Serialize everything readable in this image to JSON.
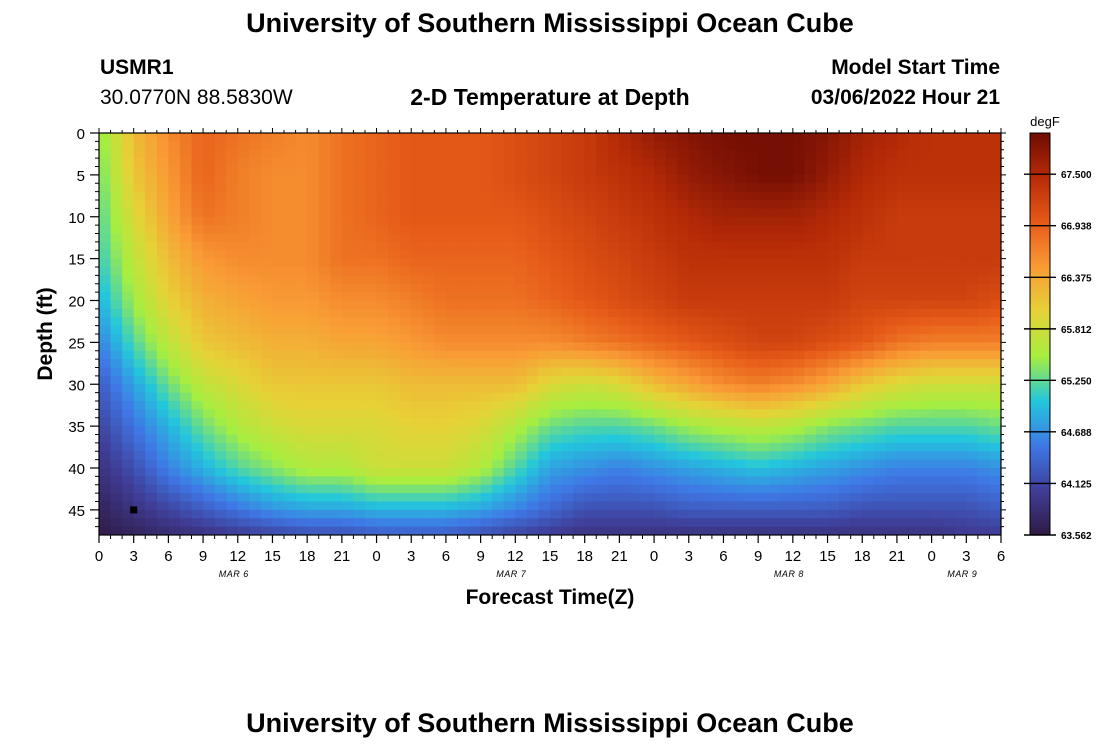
{
  "titles": {
    "top": "University of Southern Mississippi Ocean Cube",
    "bottom": "University of Southern Mississippi Ocean Cube"
  },
  "header": {
    "station": "USMR1",
    "coords": "30.0770N  88.5830W",
    "subtitle": "2-D Temperature at Depth",
    "start_label": "Model Start Time",
    "start_value": "03/06/2022 Hour 21"
  },
  "chart_data": {
    "type": "heatmap",
    "title": "2-D Temperature at Depth",
    "xlabel": "Forecast Time(Z)",
    "ylabel": "Depth (ft)",
    "x_ticks": [
      "0",
      "3",
      "6",
      "9",
      "12",
      "15",
      "18",
      "21",
      "0",
      "3",
      "6",
      "9",
      "12",
      "15",
      "18",
      "21",
      "0",
      "3",
      "6",
      "9",
      "12",
      "15",
      "18",
      "21",
      "0",
      "3",
      "6"
    ],
    "date_labels": [
      {
        "label": "MAR 6",
        "tick_index": 4
      },
      {
        "label": "MAR 7",
        "tick_index": 12
      },
      {
        "label": "MAR 8",
        "tick_index": 20
      },
      {
        "label": "MAR 9",
        "tick_index": 25
      }
    ],
    "y_ticks": [
      0,
      5,
      10,
      15,
      20,
      25,
      30,
      35,
      40,
      45
    ],
    "ylim": [
      0,
      48
    ],
    "x_range_hours": [
      0,
      78
    ],
    "colorbar": {
      "unit": "degF",
      "range": [
        63.562,
        67.95
      ],
      "labels": [
        "67.500",
        "66.938",
        "66.375",
        "65.812",
        "65.250",
        "64.688",
        "64.125",
        "63.562"
      ],
      "colors": [
        "#301a44",
        "#3f3e98",
        "#3f78e6",
        "#23c7dc",
        "#a6ee40",
        "#e6d237",
        "#f99b35",
        "#e65a18",
        "#b72b07",
        "#6f0c04"
      ]
    },
    "time_hours": [
      0,
      3,
      6,
      9,
      12,
      15,
      18,
      21,
      24,
      27,
      30,
      33,
      36,
      39,
      42,
      45,
      48,
      51,
      54,
      57,
      60,
      63,
      66,
      69,
      72,
      75,
      78
    ],
    "depth_ft": [
      0,
      5,
      10,
      15,
      20,
      25,
      30,
      35,
      40,
      45,
      48
    ],
    "temperature_degF": [
      [
        65.4,
        66.2,
        66.6,
        66.9,
        66.8,
        66.7,
        66.6,
        66.8,
        66.9,
        67.0,
        67.0,
        67.0,
        67.1,
        67.2,
        67.3,
        67.5,
        67.7,
        67.8,
        67.9,
        67.9,
        67.9,
        67.8,
        67.6,
        67.5,
        67.4,
        67.4,
        67.4
      ],
      [
        65.3,
        66.1,
        66.5,
        66.9,
        66.7,
        66.6,
        66.6,
        66.8,
        66.9,
        67.0,
        67.0,
        67.0,
        67.1,
        67.2,
        67.3,
        67.4,
        67.5,
        67.7,
        67.8,
        67.9,
        67.9,
        67.7,
        67.5,
        67.4,
        67.4,
        67.4,
        67.4
      ],
      [
        65.2,
        65.9,
        66.4,
        66.8,
        66.7,
        66.6,
        66.6,
        66.8,
        66.9,
        67.0,
        67.0,
        67.0,
        67.0,
        67.1,
        67.2,
        67.3,
        67.4,
        67.5,
        67.6,
        67.6,
        67.6,
        67.5,
        67.4,
        67.3,
        67.3,
        67.3,
        67.3
      ],
      [
        65.1,
        65.7,
        66.2,
        66.5,
        66.6,
        66.6,
        66.6,
        66.8,
        66.8,
        66.9,
        66.9,
        66.9,
        66.9,
        67.0,
        67.1,
        67.2,
        67.3,
        67.4,
        67.4,
        67.4,
        67.4,
        67.4,
        67.3,
        67.3,
        67.3,
        67.3,
        67.3
      ],
      [
        64.9,
        65.5,
        66.0,
        66.3,
        66.4,
        66.5,
        66.5,
        66.6,
        66.6,
        66.7,
        66.8,
        66.8,
        66.8,
        66.9,
        67.0,
        67.1,
        67.2,
        67.3,
        67.3,
        67.3,
        67.3,
        67.3,
        67.2,
        67.2,
        67.2,
        67.2,
        67.1
      ],
      [
        64.6,
        65.2,
        65.7,
        66.1,
        66.2,
        66.3,
        66.3,
        66.4,
        66.4,
        66.5,
        66.6,
        66.6,
        66.6,
        66.6,
        66.7,
        66.8,
        66.9,
        67.0,
        67.1,
        67.2,
        67.2,
        67.1,
        67.0,
        66.8,
        66.7,
        66.7,
        66.7
      ],
      [
        64.3,
        64.8,
        65.3,
        65.7,
        65.9,
        66.1,
        66.1,
        66.1,
        66.1,
        66.2,
        66.2,
        66.2,
        66.2,
        65.9,
        65.8,
        65.9,
        66.2,
        66.4,
        66.6,
        66.7,
        66.6,
        66.4,
        66.1,
        65.9,
        65.8,
        65.8,
        65.8
      ],
      [
        64.1,
        64.5,
        64.9,
        65.3,
        65.6,
        65.8,
        65.9,
        65.9,
        65.9,
        66.0,
        66.0,
        65.9,
        65.6,
        65.3,
        65.2,
        65.2,
        65.3,
        65.5,
        65.6,
        65.7,
        65.6,
        65.4,
        65.3,
        65.2,
        65.2,
        65.2,
        65.3
      ],
      [
        63.9,
        64.2,
        64.6,
        64.9,
        65.2,
        65.4,
        65.6,
        65.6,
        65.8,
        65.8,
        65.8,
        65.6,
        65.2,
        64.8,
        64.7,
        64.6,
        64.7,
        64.8,
        64.9,
        65.0,
        64.9,
        64.8,
        64.7,
        64.6,
        64.6,
        64.6,
        64.7
      ],
      [
        63.7,
        63.9,
        64.1,
        64.3,
        64.5,
        64.7,
        64.8,
        64.8,
        64.9,
        64.9,
        64.9,
        64.8,
        64.6,
        64.4,
        64.2,
        64.2,
        64.2,
        64.3,
        64.3,
        64.3,
        64.3,
        64.3,
        64.2,
        64.2,
        64.2,
        64.2,
        64.3
      ],
      [
        63.6,
        63.7,
        63.8,
        63.9,
        64.0,
        64.1,
        64.2,
        64.2,
        64.3,
        64.3,
        64.3,
        64.2,
        64.1,
        64.0,
        63.9,
        63.9,
        63.9,
        63.9,
        63.9,
        63.9,
        63.9,
        63.9,
        63.9,
        63.9,
        63.9,
        64.0,
        64.0
      ]
    ],
    "marker": {
      "time_hour": 3,
      "depth_ft": 45
    }
  }
}
